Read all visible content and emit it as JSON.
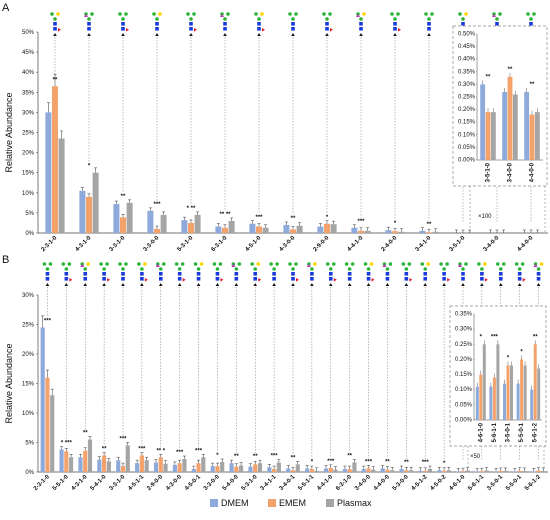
{
  "colors": {
    "DMEM": "#8eaadb",
    "EMEM": "#f4a26b",
    "Plasmax": "#a5a5a5"
  },
  "legend": {
    "items": [
      "DMEM",
      "EMEM",
      "Plasmax"
    ]
  },
  "chart_data": [
    {
      "panel": "A",
      "type": "bar",
      "ylabel": "Relative Abundance",
      "ylim": [
        0,
        50
      ],
      "yticks": [
        "0%",
        "5%",
        "10%",
        "15%",
        "20%",
        "25%",
        "30%",
        "35%",
        "40%",
        "45%",
        "50%"
      ],
      "categories": [
        "2-3-1-0",
        "4-3-1-0",
        "3-3-1-0",
        "3-3-0-0",
        "5-3-1-0",
        "6-3-1-0",
        "4-5-1-0",
        "4-3-0-0",
        "2-9-0-0",
        "4-4-1-0",
        "2-4-0-0",
        "3-4-1-0",
        "3-5-1-0",
        "3-4-0-0",
        "4-4-0-0"
      ],
      "series": [
        {
          "name": "DMEM",
          "values": [
            30,
            10.5,
            7.2,
            5.5,
            3.2,
            1.6,
            2.3,
            2.0,
            1.6,
            1.3,
            0.7,
            0.55,
            0.003,
            0.0027,
            0.0027
          ]
        },
        {
          "name": "EMEM",
          "values": [
            36.5,
            9.0,
            3.9,
            1.0,
            2.5,
            1.3,
            1.6,
            0.9,
            2.3,
            0.55,
            0.45,
            0.2,
            0.0019,
            0.0033,
            0.0018
          ]
        },
        {
          "name": "Plasmax",
          "values": [
            23.5,
            15.0,
            7.5,
            4.5,
            4.5,
            3.0,
            1.3,
            1.8,
            2.2,
            0.55,
            0.3,
            0.3,
            0.0019,
            0.0026,
            0.0019
          ]
        }
      ],
      "significance": [
        "**",
        "*",
        "**",
        "***",
        "* **",
        "** **",
        "***",
        "**",
        "*",
        "***",
        "*",
        "**",
        "",
        "",
        ""
      ],
      "inset": {
        "multiplier": "×100",
        "ylim": [
          0,
          0.5
        ],
        "yticks": [
          "0.00%",
          "0.05%",
          "0.10%",
          "0.15%",
          "0.20%",
          "0.25%",
          "0.30%",
          "0.35%",
          "0.40%",
          "0.45%",
          "0.50%"
        ],
        "categories": [
          "3-5-1-0",
          "3-4-0-0",
          "4-4-0-0"
        ],
        "series": [
          {
            "name": "DMEM",
            "values": [
              0.3,
              0.27,
              0.27
            ]
          },
          {
            "name": "EMEM",
            "values": [
              0.19,
              0.33,
              0.18
            ]
          },
          {
            "name": "Plasmax",
            "values": [
              0.19,
              0.26,
              0.19
            ]
          }
        ],
        "significance": [
          "**",
          "**",
          "**"
        ]
      }
    },
    {
      "panel": "B",
      "type": "bar",
      "ylabel": "Relative Abundance",
      "ylim": [
        0,
        30
      ],
      "yticks": [
        "0%",
        "5%",
        "10%",
        "15%",
        "20%",
        "25%",
        "30%"
      ],
      "categories": [
        "2-3-1-0",
        "5-5-1-0",
        "4-3-1-0",
        "5-4-1-0",
        "3-3-1-0",
        "4-5-1-1",
        "2-9-0-0",
        "4-3-0-0",
        "4-5-0-1",
        "3-3-0-0",
        "5-4-0-0",
        "5-3-1-0",
        "3-4-1-1",
        "3-4-0-1",
        "5-5-1-1",
        "4-4-1-0",
        "6-3-1-0",
        "3-4-0-0",
        "4-4-0-0",
        "5-3-0-0",
        "4-5-1-2",
        "4-5-0-2",
        "4-6-1-0",
        "5-6-1-1",
        "3-5-0-1",
        "5-5-0-1",
        "5-6-1-2"
      ],
      "series": [
        {
          "name": "DMEM",
          "values": [
            24.5,
            3.8,
            2.5,
            2.1,
            2.0,
            1.5,
            1.6,
            1.2,
            0.5,
            1.0,
            1.5,
            0.9,
            0.8,
            0.6,
            0.6,
            0.6,
            0.5,
            0.5,
            0.6,
            0.5,
            0.2,
            0.3,
            0.1,
            0.1,
            0.1,
            0.1,
            0.1
          ]
        },
        {
          "name": "EMEM",
          "values": [
            16.0,
            3.5,
            3.6,
            2.8,
            1.0,
            2.8,
            2.5,
            1.5,
            1.5,
            1.0,
            0.9,
            1.3,
            0.5,
            0.3,
            0.5,
            0.7,
            0.5,
            0.6,
            0.4,
            0.3,
            0.2,
            0.2,
            0.15,
            0.14,
            0.18,
            0.2,
            0.25
          ]
        },
        {
          "name": "Plasmax",
          "values": [
            13.0,
            2.5,
            5.5,
            1.8,
            4.5,
            2.0,
            1.4,
            2.2,
            2.5,
            1.7,
            1.1,
            1.5,
            1.6,
            1.3,
            0.2,
            0.4,
            1.6,
            0.4,
            0.3,
            0.3,
            0.5,
            0.3,
            0.25,
            0.25,
            0.18,
            0.18,
            0.17
          ]
        }
      ],
      "significance": [
        "***",
        "* ***",
        "**",
        "**",
        "***",
        "***",
        "** *",
        "***",
        "***",
        "*",
        "**",
        "**",
        "***",
        "**",
        "*",
        "***",
        "**",
        "***",
        "**",
        "**",
        "***",
        "*",
        "",
        "",
        "",
        "",
        ""
      ],
      "inset": {
        "multiplier": "×50",
        "ylim": [
          0,
          0.35
        ],
        "yticks": [
          "0.00%",
          "0.05%",
          "0.10%",
          "0.15%",
          "0.20%",
          "0.25%",
          "0.30%",
          "0.35%"
        ],
        "categories": [
          "4-6-1-0",
          "5-6-1-1",
          "3-5-0-1",
          "5-5-0-1",
          "5-6-1-2"
        ],
        "series": [
          {
            "name": "DMEM",
            "values": [
              0.11,
              0.11,
              0.12,
              0.12,
              0.1
            ]
          },
          {
            "name": "EMEM",
            "values": [
              0.15,
              0.14,
              0.18,
              0.2,
              0.25
            ]
          },
          {
            "name": "Plasmax",
            "values": [
              0.25,
              0.25,
              0.18,
              0.18,
              0.17
            ]
          }
        ],
        "significance": [
          "*",
          "***",
          "*",
          "*",
          "**"
        ]
      }
    }
  ]
}
